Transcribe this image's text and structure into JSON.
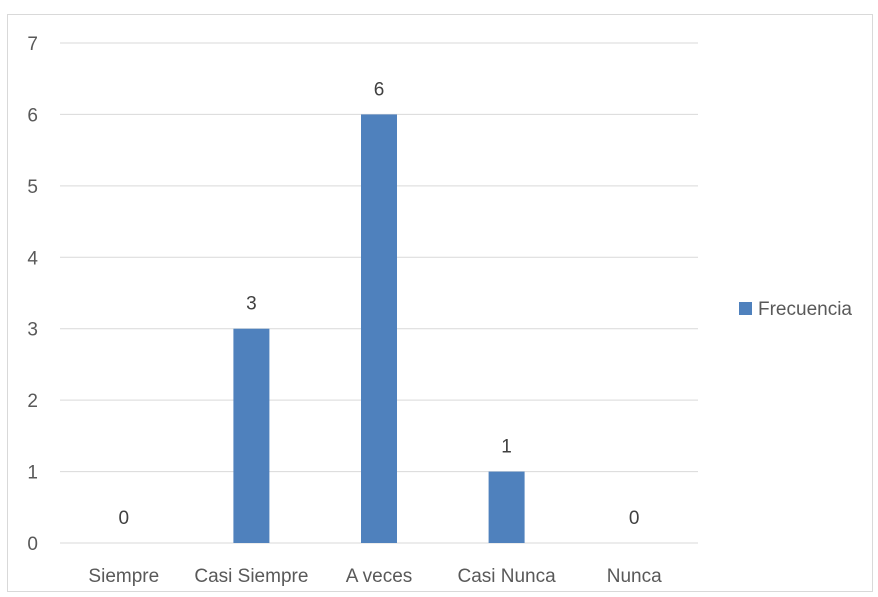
{
  "chart_data": {
    "type": "bar",
    "categories": [
      "Siempre",
      "Casi Siempre",
      "A veces",
      "Casi Nunca",
      "Nunca"
    ],
    "series": [
      {
        "name": "Frecuencia",
        "values": [
          0,
          3,
          6,
          1,
          0
        ],
        "color": "#4f81bd"
      }
    ],
    "data_labels": [
      "0",
      "3",
      "6",
      "1",
      "0"
    ],
    "y_ticks": [
      "0",
      "1",
      "2",
      "3",
      "4",
      "5",
      "6",
      "7"
    ],
    "ylim": [
      0,
      7
    ],
    "grid": "horizontal",
    "legend_position": "right",
    "colors": {
      "gridline": "#d9d9d9",
      "axis": "#d9d9d9",
      "text": "#595959",
      "label": "#404040"
    }
  }
}
